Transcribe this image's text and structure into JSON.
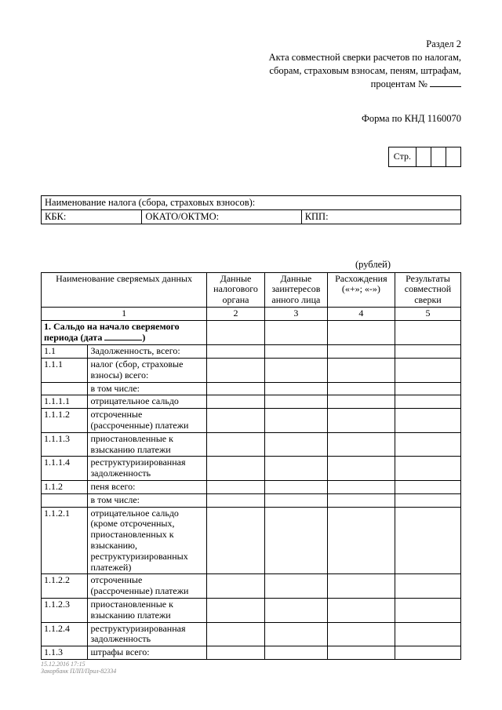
{
  "header": {
    "section": "Раздел 2",
    "line1": "Акта совместной сверки расчетов по налогам,",
    "line2": "сборам,  страховым взносам, пеням, штрафам,",
    "line3": "процентам  №"
  },
  "form_code": "Форма по КНД 1160070",
  "page_label": "Стр.",
  "info": {
    "tax_name_label": "Наименование  налога (сбора, страховых взносов):",
    "kbk_label": "КБК:",
    "okato_label": "ОКАТО/ОКТМО:",
    "kpp_label": "КПП:"
  },
  "currency_label": "(рублей)",
  "columns": {
    "c1": "Наименование сверяемых данных",
    "c2": "Данные налогового органа",
    "c3": "Данные заинтересов анного лица",
    "c4": "Расхождения («+»; «-»)",
    "c5": "Результаты совместной сверки",
    "n1": "1",
    "n2": "2",
    "n3": "3",
    "n4": "4",
    "n5": "5"
  },
  "section1_a": "1. Сальдо на начало сверяемого",
  "section1_b": "периода (дата",
  "section1_c": ")",
  "rows": [
    {
      "num": "1.1",
      "text": "Задолженность, всего:"
    },
    {
      "num": "1.1.1",
      "text": "налог (сбор, страховые взносы) всего:"
    },
    {
      "num": "",
      "text": "в том числе:"
    },
    {
      "num": "1.1.1.1",
      "text": "отрицательное сальдо"
    },
    {
      "num": "1.1.1.2",
      "text": "отсроченные (рассроченные) платежи"
    },
    {
      "num": "1.1.1.3",
      "text": "приостановленные к взысканию платежи"
    },
    {
      "num": "1.1.1.4",
      "text": "реструктуризированная задолженность"
    },
    {
      "num": "1.1.2",
      "text": "пеня всего:"
    },
    {
      "num": "",
      "text": "в том числе:"
    },
    {
      "num": "1.1.2.1",
      "text": "отрицательное сальдо (кроме отсроченных, приостановленных к взысканию, реструктуризированных платежей)"
    },
    {
      "num": "1.1.2.2",
      "text": "отсроченные (рассроченные) платежи"
    },
    {
      "num": "1.1.2.3",
      "text": "приостановленные к взысканию платежи"
    },
    {
      "num": "1.1.2.4",
      "text": "реструктуризированная задолженность"
    },
    {
      "num": "1.1.3",
      "text": "штрафы всего:"
    }
  ],
  "footer_a": "15.12.2016 17:15",
  "footer_b": "Закорбанк ПЛП/Прил-82334",
  "col_widths": {
    "num": 58,
    "text": 148,
    "c2": 72,
    "c3": 78,
    "c4": 84,
    "c5": 82
  }
}
